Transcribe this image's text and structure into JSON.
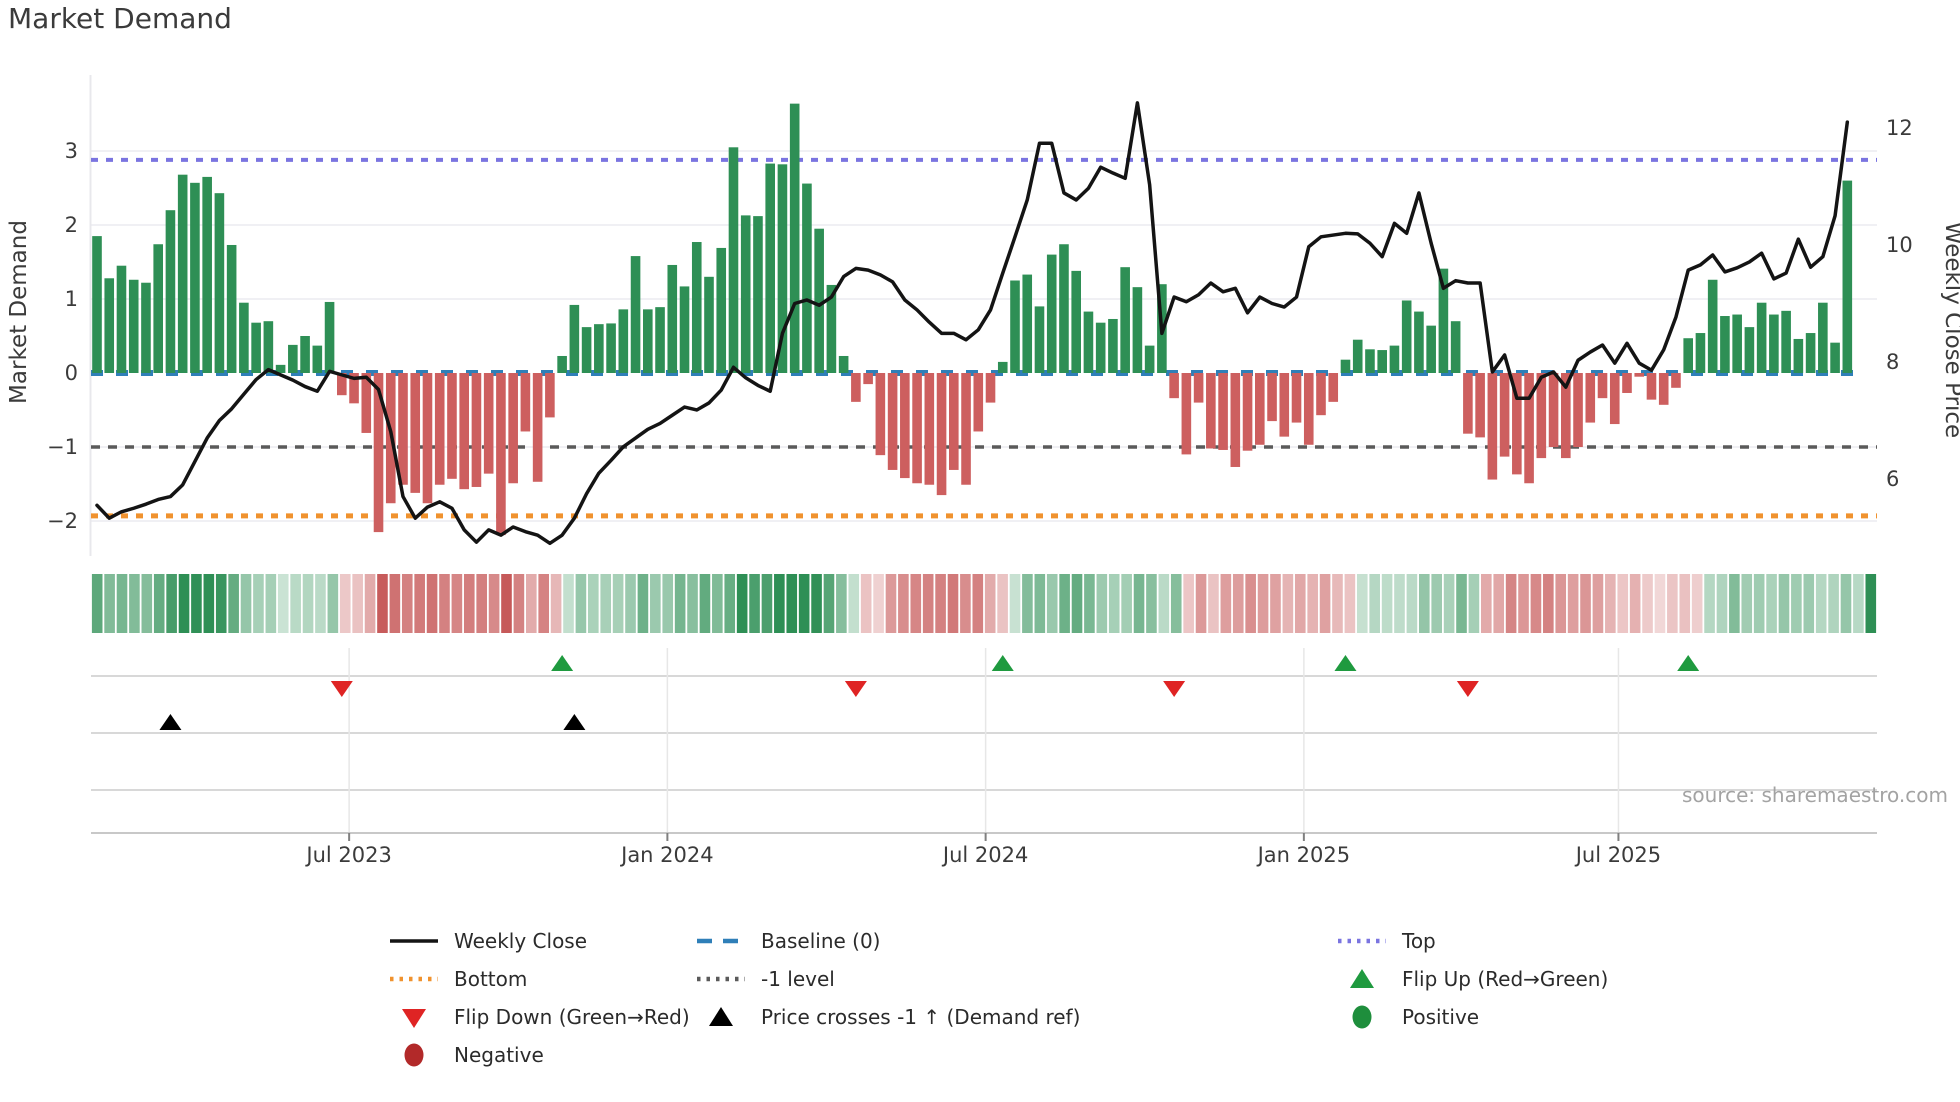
{
  "title": "Market Demand",
  "source": "source: sharemaestro.com",
  "axes": {
    "left_title": "Market Demand",
    "right_title": "Weekly Close Price",
    "left_ticks": [
      "3",
      "2",
      "1",
      "0",
      "−1",
      "−2"
    ],
    "left_tick_values": [
      3,
      2,
      1,
      0,
      -1,
      -2
    ],
    "right_ticks": [
      "12",
      "10",
      "8",
      "6"
    ],
    "right_tick_values": [
      12,
      10,
      8,
      6
    ],
    "x_ticks": [
      {
        "label": "Jul 2023",
        "i": 20.6
      },
      {
        "label": "Jan 2024",
        "i": 46.6
      },
      {
        "label": "Jul 2024",
        "i": 72.6
      },
      {
        "label": "Jan 2025",
        "i": 98.6
      },
      {
        "label": "Jul 2025",
        "i": 124.3
      }
    ]
  },
  "chart_data": {
    "type": "combo",
    "subtypes": [
      "bar",
      "line",
      "heatmap",
      "scatter-markers"
    ],
    "title": "Market Demand",
    "xlabel": "",
    "ylabel_left": "Market Demand",
    "ylabel_right": "Weekly Close Price",
    "x_unit": "weeks (Feb 2023 - Nov 2025)",
    "ylim_left": [
      -2.5,
      3.8
    ],
    "ylim_right": [
      4.5,
      12.6
    ],
    "grid": "horizontal-only",
    "legend_position": "below",
    "demand_bars": [
      1.85,
      1.28,
      1.45,
      1.26,
      1.22,
      1.74,
      2.2,
      2.68,
      2.57,
      2.65,
      2.43,
      1.73,
      0.95,
      0.68,
      0.7,
      0.11,
      0.38,
      0.5,
      0.37,
      0.96,
      -0.3,
      -0.41,
      -0.81,
      -2.15,
      -1.76,
      -1.51,
      -1.62,
      -1.76,
      -1.51,
      -1.43,
      -1.57,
      -1.54,
      -1.36,
      -2.19,
      -1.49,
      -0.79,
      -1.47,
      -0.6,
      0.23,
      0.92,
      0.62,
      0.66,
      0.67,
      0.86,
      1.58,
      0.86,
      0.89,
      1.46,
      1.17,
      1.77,
      1.3,
      1.69,
      3.05,
      2.13,
      2.12,
      2.83,
      2.82,
      3.64,
      2.56,
      1.95,
      1.19,
      0.23,
      -0.39,
      -0.15,
      -1.11,
      -1.31,
      -1.42,
      -1.49,
      -1.51,
      -1.65,
      -1.31,
      -1.51,
      -0.79,
      -0.4,
      0.15,
      1.25,
      1.33,
      0.9,
      1.6,
      1.74,
      1.38,
      0.83,
      0.68,
      0.73,
      1.43,
      1.16,
      0.37,
      1.2,
      -0.34,
      -1.1,
      -0.4,
      -1.02,
      -1.04,
      -1.27,
      -1.05,
      -0.97,
      -0.65,
      -0.86,
      -0.67,
      -0.97,
      -0.57,
      -0.39,
      0.18,
      0.45,
      0.32,
      0.31,
      0.37,
      0.98,
      0.83,
      0.64,
      1.41,
      0.7,
      -0.82,
      -0.87,
      -1.44,
      -1.13,
      -1.37,
      -1.49,
      -1.15,
      -1.0,
      -1.15,
      -1.0,
      -0.67,
      -0.34,
      -0.69,
      -0.27,
      -0.05,
      -0.36,
      -0.43,
      -0.2,
      0.47,
      0.54,
      1.26,
      0.77,
      0.79,
      0.62,
      0.95,
      0.79,
      0.84,
      0.46,
      0.54,
      0.95,
      0.41,
      2.6
    ],
    "weekly_close": [
      5.55,
      5.33,
      5.44,
      5.5,
      5.57,
      5.65,
      5.7,
      5.9,
      6.3,
      6.7,
      7.0,
      7.2,
      7.45,
      7.7,
      7.87,
      7.78,
      7.69,
      7.58,
      7.5,
      7.84,
      7.78,
      7.72,
      7.74,
      7.53,
      6.81,
      5.7,
      5.33,
      5.52,
      5.61,
      5.5,
      5.13,
      4.92,
      5.13,
      5.04,
      5.18,
      5.1,
      5.04,
      4.9,
      5.04,
      5.33,
      5.75,
      6.1,
      6.32,
      6.55,
      6.7,
      6.85,
      6.95,
      7.09,
      7.23,
      7.18,
      7.3,
      7.52,
      7.91,
      7.73,
      7.6,
      7.5,
      8.49,
      9.0,
      9.06,
      8.97,
      9.11,
      9.46,
      9.6,
      9.57,
      9.49,
      9.37,
      9.06,
      8.89,
      8.68,
      8.49,
      8.49,
      8.38,
      8.55,
      8.89,
      9.52,
      10.14,
      10.77,
      11.74,
      11.74,
      10.89,
      10.77,
      10.97,
      11.33,
      11.23,
      11.14,
      12.43,
      11.03,
      8.49,
      9.11,
      9.03,
      9.15,
      9.35,
      9.2,
      9.26,
      8.84,
      9.11,
      9.0,
      8.94,
      9.11,
      9.97,
      10.14,
      10.17,
      10.2,
      10.19,
      10.03,
      9.8,
      10.37,
      10.2,
      10.89,
      10.03,
      9.26,
      9.39,
      9.35,
      9.35,
      7.83,
      8.12,
      7.38,
      7.38,
      7.74,
      7.83,
      7.57,
      8.03,
      8.17,
      8.29,
      7.98,
      8.32,
      7.98,
      7.86,
      8.21,
      8.77,
      9.57,
      9.66,
      9.83,
      9.54,
      9.61,
      9.71,
      9.86,
      9.42,
      9.52,
      10.1,
      9.62,
      9.8,
      10.5,
      12.1
    ],
    "reference_lines": {
      "top": 2.88,
      "baseline": 0,
      "minus1_level": -1,
      "bottom": -1.93
    },
    "markers": {
      "flip_up_idx": [
        38,
        74,
        102,
        130
      ],
      "flip_down_idx": [
        20,
        62,
        88,
        112
      ],
      "price_cross_idx": [
        6,
        39
      ]
    },
    "heatmap": "derived: color intensity proportional to |demand| (green positive, red negative)"
  },
  "colors": {
    "bar_positive": "#2e8f55",
    "bar_negative": "#cd5f5f",
    "price_line": "#141414",
    "baseline": "#2f7fb8",
    "top_line": "#7a74e0",
    "bottom_line": "#f0922e",
    "minus1_line": "#5a5a5a",
    "flip_up": "#1f9a3f",
    "flip_down": "#df2424",
    "price_cross": "#000000",
    "positive_dot": "#1e8e3c",
    "negative_dot": "#b22929",
    "grid": "#f0f0f4",
    "panel_grid": "#d8d8d8",
    "axis_line": "#c8c8c8",
    "tick_text": "#3b3b3b",
    "source_text": "#a3a3a3"
  },
  "legend": {
    "columns": [
      [
        {
          "label": "Weekly Close",
          "swatch": "solid-line",
          "color": "#141414"
        },
        {
          "label": "Bottom",
          "swatch": "dots",
          "color": "#f0922e"
        },
        {
          "label": "Flip Down (Green→Red)",
          "swatch": "tri-down",
          "color": "#df2424"
        },
        {
          "label": "Negative",
          "swatch": "circle",
          "color": "#b22929"
        }
      ],
      [
        {
          "label": "Baseline (0)",
          "swatch": "dashes",
          "color": "#2f7fb8"
        },
        {
          "label": "-1 level",
          "swatch": "dots",
          "color": "#5a5a5a"
        },
        {
          "label": "Price crosses -1 ↑ (Demand ref)",
          "swatch": "tri-up",
          "color": "#000000"
        }
      ],
      [
        {
          "label": "Top",
          "swatch": "dots",
          "color": "#7a74e0"
        },
        {
          "label": "Flip Up (Red→Green)",
          "swatch": "tri-up",
          "color": "#1f9a3f"
        },
        {
          "label": "Positive",
          "swatch": "circle",
          "color": "#1e8e3c"
        }
      ]
    ]
  }
}
